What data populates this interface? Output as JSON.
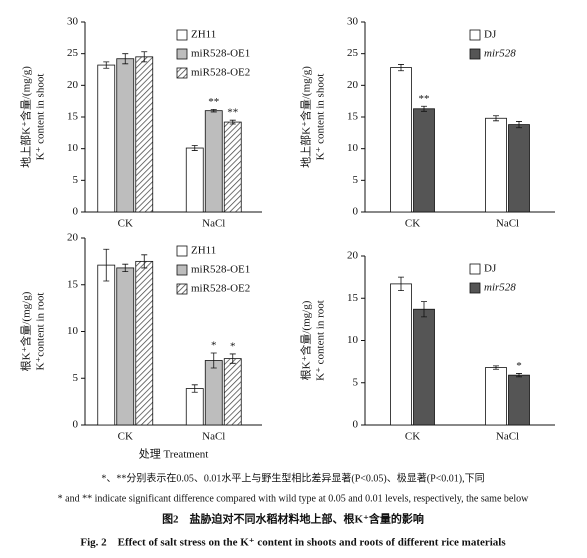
{
  "chart_data": [
    {
      "type": "bar",
      "ylabel_cn": "地上部K⁺含量/(mg/g)",
      "ylabel_en": "K⁺ content in shoot",
      "categories": [
        "CK",
        "NaCl"
      ],
      "ylim": [
        0,
        30
      ],
      "yticks": [
        0,
        5,
        10,
        15,
        20,
        25,
        30
      ],
      "legend": "upper right",
      "series": [
        {
          "name": "ZH11",
          "color": "#ffffff",
          "values": [
            23.2,
            10.1
          ],
          "errors": [
            0.5,
            0.4
          ],
          "significance": [
            null,
            null
          ]
        },
        {
          "name": "miR528-OE1",
          "color": "#bdbdbd",
          "values": [
            24.2,
            16.0
          ],
          "errors": [
            0.8,
            0.2
          ],
          "significance": [
            null,
            "**"
          ]
        },
        {
          "name": "miR528-OE2",
          "color": "hatch",
          "values": [
            24.5,
            14.2
          ],
          "errors": [
            0.8,
            0.3
          ],
          "significance": [
            null,
            "**"
          ]
        }
      ]
    },
    {
      "type": "bar",
      "ylabel_cn": "地上部K⁺含量/(mg/g)",
      "ylabel_en": "K⁺ content in shoot",
      "categories": [
        "CK",
        "NaCl"
      ],
      "ylim": [
        0,
        30
      ],
      "yticks": [
        0,
        5,
        10,
        15,
        20,
        25,
        30
      ],
      "legend": "upper right",
      "series": [
        {
          "name": "DJ",
          "color": "#ffffff",
          "values": [
            22.8,
            14.8
          ],
          "errors": [
            0.5,
            0.4
          ],
          "significance": [
            null,
            null
          ]
        },
        {
          "name": "mir528",
          "color": "#555555",
          "values": [
            16.3,
            13.8
          ],
          "errors": [
            0.4,
            0.5
          ],
          "significance": [
            "**",
            null
          ]
        }
      ]
    },
    {
      "type": "bar",
      "ylabel_cn": "根K⁺含量/(mg/g)",
      "ylabel_en": "K⁺content in root",
      "xlabel": "处理 Treatment",
      "categories": [
        "CK",
        "NaCl"
      ],
      "ylim": [
        0,
        20
      ],
      "yticks": [
        0,
        5,
        10,
        15,
        20
      ],
      "legend": "upper right",
      "series": [
        {
          "name": "ZH11",
          "color": "#ffffff",
          "values": [
            17.1,
            3.9
          ],
          "errors": [
            1.7,
            0.4
          ],
          "significance": [
            null,
            null
          ]
        },
        {
          "name": "miR528-OE1",
          "color": "#bdbdbd",
          "values": [
            16.8,
            6.9
          ],
          "errors": [
            0.4,
            0.8
          ],
          "significance": [
            null,
            "*"
          ]
        },
        {
          "name": "miR528-OE2",
          "color": "hatch",
          "values": [
            17.5,
            7.1
          ],
          "errors": [
            0.7,
            0.5
          ],
          "significance": [
            null,
            "*"
          ]
        }
      ]
    },
    {
      "type": "bar",
      "ylabel_cn": "根K⁺含量/(mg/g)",
      "ylabel_en": "K⁺ content in root",
      "categories": [
        "CK",
        "NaCl"
      ],
      "ylim": [
        0,
        20
      ],
      "yticks": [
        0,
        5,
        10,
        15,
        20
      ],
      "legend": "upper right",
      "series": [
        {
          "name": "DJ",
          "color": "#ffffff",
          "values": [
            16.7,
            6.8
          ],
          "errors": [
            0.8,
            0.2
          ],
          "significance": [
            null,
            null
          ]
        },
        {
          "name": "mir528",
          "color": "#555555",
          "values": [
            13.7,
            5.9
          ],
          "errors": [
            0.9,
            0.2
          ],
          "significance": [
            null,
            "*"
          ]
        }
      ]
    }
  ],
  "caption": {
    "note_cn": "*、**分别表示在0.05、0.01水平上与野生型相比差异显著(P<0.05)、极显著(P<0.01),下同",
    "note_en": "* and ** indicate significant difference compared with wild type at 0.05 and 0.01 levels, respectively, the same below",
    "title_cn": "图2　盐胁迫对不同水稻材料地上部、根K⁺含量的影响",
    "title_en": "Fig. 2　Effect of salt stress on the K⁺ content in shoots and roots of different rice materials"
  }
}
